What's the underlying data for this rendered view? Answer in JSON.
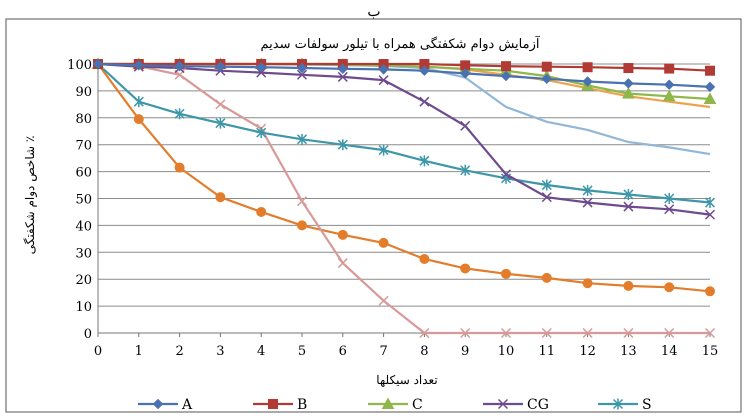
{
  "header_mark": "ب",
  "chart_data": {
    "type": "line",
    "title": "آزمایش دوام شکفتگی همراه با تیلور سولفات سدیم",
    "xlabel": "تعداد سیکلها",
    "ylabel": "شاخص دوام شکفتگی ٪",
    "xlim": [
      0,
      15
    ],
    "ylim": [
      0,
      100
    ],
    "x_ticks": [
      "0",
      "1",
      "2",
      "3",
      "4",
      "5",
      "6",
      "7",
      "8",
      "9",
      "10",
      "11",
      "12",
      "13",
      "14",
      "15"
    ],
    "y_ticks": [
      "0",
      "10",
      "20",
      "30",
      "40",
      "50",
      "60",
      "70",
      "80",
      "90",
      "100"
    ],
    "grid": true,
    "legend_position": "bottom",
    "x": [
      0,
      1,
      2,
      3,
      4,
      5,
      6,
      7,
      8,
      9,
      10,
      11,
      12,
      13,
      14,
      15
    ],
    "series": [
      {
        "name": "A",
        "color": "#4A72B0",
        "marker": "diamond",
        "values": [
          100,
          99.5,
          99.2,
          99,
          98.8,
          98.5,
          98.2,
          98,
          97.5,
          96.5,
          95.5,
          94.5,
          93.5,
          92.8,
          92.3,
          91.5
        ]
      },
      {
        "name": "B",
        "color": "#B23A35",
        "marker": "square",
        "values": [
          100,
          100,
          100,
          100,
          100,
          100,
          100,
          100,
          100,
          99.5,
          99.2,
          99,
          98.8,
          98.5,
          98.3,
          97.5
        ]
      },
      {
        "name": "C",
        "color": "#8FB74A",
        "marker": "triangle",
        "values": [
          100,
          100,
          100,
          100,
          100,
          100,
          99.8,
          99.5,
          99,
          98.2,
          97.5,
          95.5,
          92,
          89,
          88,
          87
        ]
      },
      {
        "name": "CG",
        "color": "#6E4A8E",
        "marker": "x",
        "values": [
          100,
          99,
          98.5,
          97.5,
          96.8,
          96,
          95.2,
          94,
          86,
          77,
          59,
          50.5,
          48.5,
          47,
          46,
          44
        ]
      },
      {
        "name": "S",
        "color": "#3D97A8",
        "marker": "star",
        "values": [
          100,
          86,
          81.5,
          78,
          74.5,
          72,
          70,
          68,
          64,
          60.5,
          57.5,
          55,
          53,
          51.5,
          50,
          48.5
        ]
      },
      {
        "name": "",
        "color": "#F0A24A",
        "marker": "none",
        "values": [
          100,
          100,
          100,
          100,
          100,
          100,
          100,
          99.5,
          99,
          98,
          96,
          94,
          91,
          88,
          86,
          84
        ]
      },
      {
        "name": "",
        "color": "#93B7D6",
        "marker": "none",
        "values": [
          100,
          100,
          100,
          100,
          100,
          99.8,
          99.6,
          99.3,
          98.5,
          95,
          84,
          78.5,
          75.5,
          71,
          69,
          66.5
        ]
      },
      {
        "name": "",
        "color": "#D79A98",
        "marker": "x",
        "values": [
          100,
          99.2,
          96,
          85,
          76,
          49,
          26,
          12,
          0,
          0,
          0,
          0,
          0,
          0,
          0,
          0
        ]
      },
      {
        "name": "",
        "color": "#E37D2C",
        "marker": "circle",
        "values": [
          100,
          79.5,
          61.5,
          50.5,
          45,
          40,
          36.5,
          33.5,
          27.5,
          24,
          22,
          20.5,
          18.5,
          17.5,
          17,
          15.5
        ]
      }
    ]
  }
}
